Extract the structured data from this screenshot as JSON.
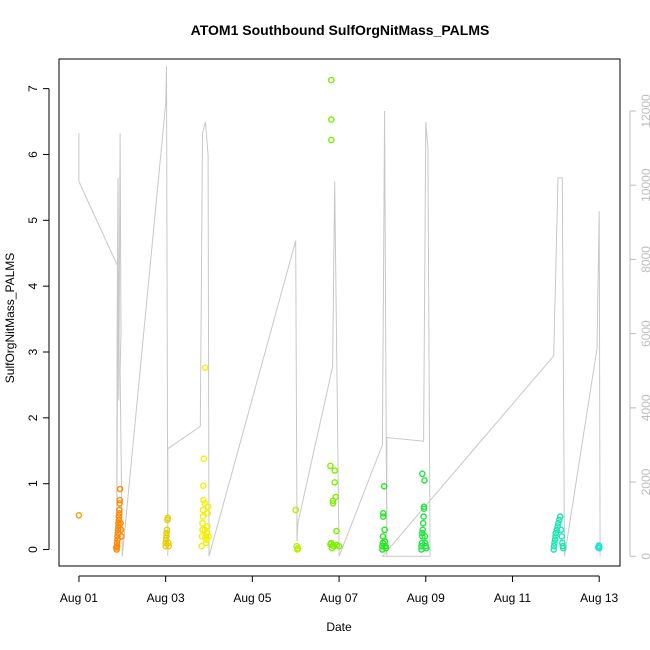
{
  "chart_data": {
    "type": "scatter",
    "title": "ATOM1 Southbound SulfOrgNitMass_PALMS",
    "xlabel": "Date",
    "ylabel": "SulfOrgNitMass_PALMS",
    "x_ticks": [
      "Aug 01",
      "Aug 03",
      "Aug 05",
      "Aug 07",
      "Aug 09",
      "Aug 11",
      "Aug 13"
    ],
    "x_tick_days": [
      1,
      3,
      5,
      7,
      9,
      11,
      13
    ],
    "xlim_days": [
      0.54,
      13.48
    ],
    "ylim": [
      -0.25,
      7.45
    ],
    "y_ticks": [
      0,
      1,
      2,
      3,
      4,
      5,
      6,
      7
    ],
    "right_axis": {
      "label": "",
      "ylim": [
        -262,
        13400
      ],
      "ticks": [
        0,
        2000,
        4000,
        6000,
        8000,
        10000,
        12000
      ],
      "color": "#bdbdbd"
    },
    "grid": false,
    "series": [
      {
        "color": "#ff9a00",
        "points": [
          [
            1.0,
            0.52
          ]
        ]
      },
      {
        "color": "#ff8800",
        "points": [
          [
            1.88,
            0.05
          ],
          [
            1.88,
            0.1
          ],
          [
            1.89,
            0.15
          ],
          [
            1.89,
            0.2
          ],
          [
            1.9,
            0.25
          ],
          [
            1.9,
            0.3
          ],
          [
            1.91,
            0.35
          ],
          [
            1.91,
            0.4
          ],
          [
            1.92,
            0.45
          ],
          [
            1.92,
            0.5
          ],
          [
            1.93,
            0.55
          ],
          [
            1.93,
            0.6
          ],
          [
            1.94,
            0.7
          ],
          [
            1.94,
            0.75
          ],
          [
            1.95,
            0.92
          ],
          [
            1.96,
            0.4
          ],
          [
            1.97,
            0.3
          ],
          [
            1.98,
            0.2
          ],
          [
            1.87,
            0.0
          ],
          [
            1.86,
            0.03
          ]
        ]
      },
      {
        "color": "#e6cc00",
        "points": [
          [
            3.0,
            0.05
          ],
          [
            3.0,
            0.1
          ],
          [
            3.01,
            0.15
          ],
          [
            3.02,
            0.2
          ],
          [
            3.02,
            0.25
          ],
          [
            3.03,
            0.3
          ],
          [
            3.04,
            0.45
          ],
          [
            3.05,
            0.48
          ],
          [
            3.06,
            0.1
          ],
          [
            3.07,
            0.05
          ]
        ]
      },
      {
        "color": "#f0f000",
        "points": [
          [
            3.83,
            0.05
          ],
          [
            3.84,
            0.2
          ],
          [
            3.85,
            0.3
          ],
          [
            3.85,
            0.4
          ],
          [
            3.86,
            0.5
          ],
          [
            3.86,
            0.6
          ],
          [
            3.87,
            0.75
          ],
          [
            3.87,
            0.97
          ],
          [
            3.88,
            1.38
          ],
          [
            3.9,
            0.7
          ],
          [
            3.9,
            0.3
          ],
          [
            3.91,
            2.76
          ],
          [
            3.92,
            0.2
          ],
          [
            3.93,
            0.1
          ],
          [
            3.94,
            0.15
          ],
          [
            3.95,
            0.25
          ],
          [
            3.96,
            0.35
          ],
          [
            3.97,
            0.55
          ],
          [
            3.98,
            0.65
          ],
          [
            3.99,
            0.2
          ]
        ]
      },
      {
        "color": "#b2f000",
        "points": [
          [
            6.0,
            0.6
          ],
          [
            6.02,
            0.05
          ],
          [
            6.04,
            0.0
          ],
          [
            6.05,
            0.02
          ]
        ]
      },
      {
        "color": "#7cf000",
        "points": [
          [
            6.82,
            7.13
          ],
          [
            6.82,
            6.53
          ],
          [
            6.82,
            6.22
          ],
          [
            6.8,
            1.27
          ],
          [
            6.84,
            0.02
          ],
          [
            6.8,
            0.08
          ],
          [
            6.86,
            0.06
          ],
          [
            6.9,
            1.2
          ],
          [
            6.9,
            1.02
          ],
          [
            6.92,
            0.8
          ],
          [
            6.94,
            0.28
          ],
          [
            6.86,
            0.7
          ],
          [
            6.86,
            0.74
          ],
          [
            6.88,
            0.05
          ],
          [
            6.95,
            0.07
          ],
          [
            7.0,
            0.05
          ],
          [
            6.82,
            0.1
          ]
        ]
      },
      {
        "color": "#22e61e",
        "points": [
          [
            8.0,
            0.0
          ],
          [
            8.0,
            0.05
          ],
          [
            8.01,
            0.1
          ],
          [
            8.01,
            0.2
          ],
          [
            8.02,
            0.5
          ],
          [
            8.02,
            0.55
          ],
          [
            8.04,
            0.96
          ],
          [
            8.05,
            0.3
          ],
          [
            8.06,
            0.12
          ],
          [
            8.07,
            0.05
          ],
          [
            8.08,
            0.02
          ]
        ]
      },
      {
        "color": "#1ee640",
        "points": [
          [
            8.9,
            0.0
          ],
          [
            8.9,
            0.05
          ],
          [
            8.91,
            0.1
          ],
          [
            8.92,
            0.2
          ],
          [
            8.92,
            0.25
          ],
          [
            8.93,
            0.3
          ],
          [
            8.94,
            0.4
          ],
          [
            8.95,
            0.5
          ],
          [
            8.96,
            0.62
          ],
          [
            8.96,
            0.65
          ],
          [
            8.97,
            1.05
          ],
          [
            8.92,
            1.15
          ],
          [
            8.98,
            0.2
          ],
          [
            8.99,
            0.1
          ],
          [
            9.0,
            0.05
          ],
          [
            9.01,
            0.02
          ]
        ]
      },
      {
        "color": "#19e6b0",
        "points": [
          [
            11.95,
            0.0
          ],
          [
            11.96,
            0.05
          ],
          [
            11.97,
            0.1
          ],
          [
            11.98,
            0.15
          ],
          [
            11.99,
            0.2
          ],
          [
            12.0,
            0.25
          ],
          [
            12.02,
            0.3
          ],
          [
            12.04,
            0.35
          ],
          [
            12.06,
            0.4
          ],
          [
            12.08,
            0.45
          ],
          [
            12.1,
            0.5
          ],
          [
            12.12,
            0.3
          ],
          [
            12.14,
            0.2
          ],
          [
            12.15,
            0.1
          ],
          [
            12.16,
            0.05
          ],
          [
            12.17,
            0.02
          ]
        ]
      },
      {
        "color": "#19e6d2",
        "points": [
          [
            12.98,
            0.03
          ],
          [
            12.99,
            0.06
          ],
          [
            13.0,
            0.02
          ],
          [
            13.0,
            0.05
          ]
        ]
      }
    ],
    "altitude_line": {
      "color": "#c8c8c8",
      "points": [
        [
          1.0,
          11400
        ],
        [
          1.0,
          10100
        ],
        [
          1.9,
          7800
        ],
        [
          1.87,
          200
        ],
        [
          1.88,
          6000
        ],
        [
          1.9,
          10200
        ],
        [
          1.92,
          4200
        ],
        [
          1.95,
          11400
        ],
        [
          1.97,
          6000
        ],
        [
          1.95,
          5000
        ],
        [
          2.0,
          0
        ],
        [
          3.0,
          12200
        ],
        [
          3.02,
          13200
        ],
        [
          3.05,
          0
        ],
        [
          3.05,
          2900
        ],
        [
          3.8,
          3500
        ],
        [
          3.85,
          11400
        ],
        [
          3.92,
          11700
        ],
        [
          3.98,
          10800
        ],
        [
          4.0,
          0
        ],
        [
          6.0,
          8500
        ],
        [
          6.03,
          400
        ],
        [
          6.05,
          900
        ],
        [
          6.85,
          5100
        ],
        [
          6.9,
          10100
        ],
        [
          7.0,
          0
        ],
        [
          8.0,
          3000
        ],
        [
          8.05,
          12000
        ],
        [
          8.1,
          0
        ],
        [
          8.1,
          3200
        ],
        [
          8.95,
          3100
        ],
        [
          9.0,
          11700
        ],
        [
          9.05,
          11000
        ],
        [
          9.1,
          0
        ],
        [
          8.0,
          0
        ],
        [
          11.95,
          5400
        ],
        [
          12.05,
          10200
        ],
        [
          12.15,
          10200
        ],
        [
          12.2,
          0
        ],
        [
          12.95,
          5600
        ],
        [
          13.0,
          9300
        ],
        [
          13.02,
          0
        ]
      ]
    }
  }
}
